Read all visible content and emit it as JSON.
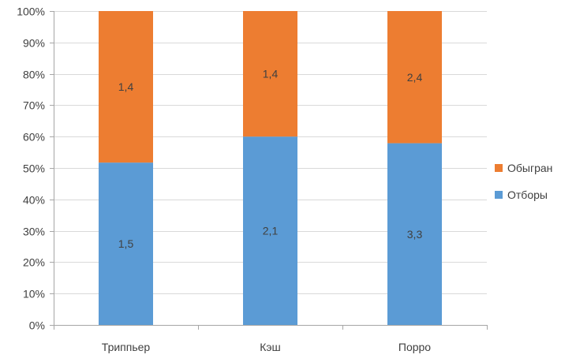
{
  "chart_data": {
    "type": "bar",
    "stacked": true,
    "normalized_percent": true,
    "categories": [
      "Триппьер",
      "Кэш",
      "Порро"
    ],
    "series": [
      {
        "name": "Отборы",
        "values": [
          1.5,
          2.1,
          3.3
        ],
        "labels": [
          "1,5",
          "2,1",
          "3,3"
        ],
        "color": "#5B9BD5"
      },
      {
        "name": "Обыгран",
        "values": [
          1.4,
          1.4,
          2.4
        ],
        "labels": [
          "1,4",
          "1,4",
          "2,4"
        ],
        "color": "#ED7D31"
      }
    ],
    "y_ticks": [
      "0%",
      "10%",
      "20%",
      "30%",
      "40%",
      "50%",
      "60%",
      "70%",
      "80%",
      "90%",
      "100%"
    ],
    "ylim": [
      0,
      100
    ],
    "grid": true,
    "legend": {
      "position": "right",
      "order": [
        "Обыгран",
        "Отборы"
      ]
    },
    "colors": {
      "gridline": "#d9d9d9",
      "axis": "#a6a6a6",
      "text": "#404040"
    }
  }
}
